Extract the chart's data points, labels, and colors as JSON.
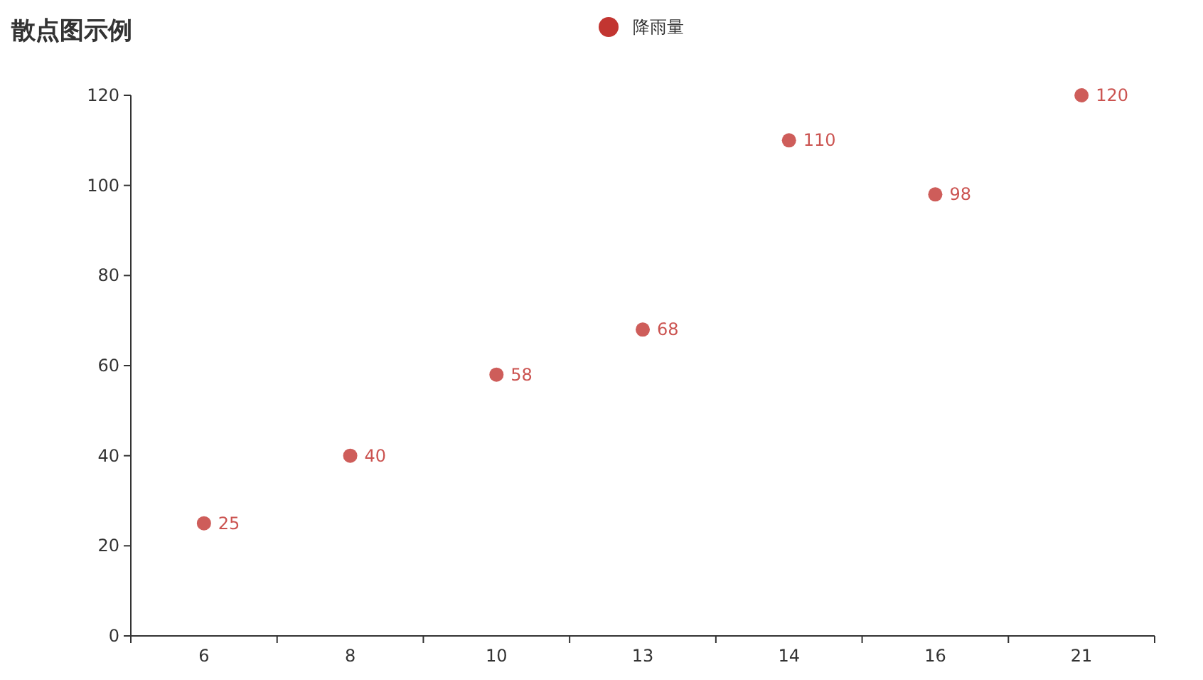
{
  "chart_data": {
    "type": "scatter",
    "title": "散点图示例",
    "categories": [
      "6",
      "8",
      "10",
      "13",
      "14",
      "16",
      "21"
    ],
    "series": [
      {
        "name": "降雨量",
        "color": "#c23531",
        "values": [
          25,
          40,
          58,
          68,
          110,
          98,
          120
        ]
      }
    ],
    "ylim": [
      0,
      120
    ],
    "yticks": [
      0,
      20,
      40,
      60,
      80,
      100,
      120
    ],
    "data_labels": true,
    "legend": "top",
    "marker": "circle"
  }
}
